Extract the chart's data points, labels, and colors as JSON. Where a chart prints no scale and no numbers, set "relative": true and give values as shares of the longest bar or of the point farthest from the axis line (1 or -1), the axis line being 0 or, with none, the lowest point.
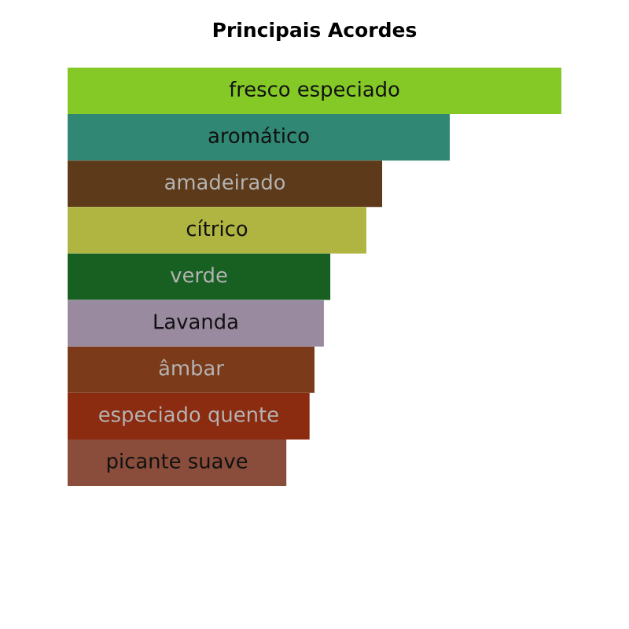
{
  "chart_data": {
    "type": "bar",
    "orientation": "horizontal",
    "relative": true,
    "title": "Principais Acordes",
    "categories": [
      "fresco especiado",
      "aromático",
      "amadeirado",
      "cítrico",
      "verde",
      "Lavanda",
      "âmbar",
      "especiado quente",
      "picante suave"
    ],
    "values": [
      1,
      0.774,
      0.637,
      0.605,
      0.532,
      0.519,
      0.5,
      0.49,
      0.443
    ],
    "colors": [
      "#85c927",
      "#2f8774",
      "#5c3a1a",
      "#b0b440",
      "#176021",
      "#998aa0",
      "#7b3a19",
      "#8b2c10",
      "#8a4d3b"
    ],
    "tick_labels": false
  }
}
